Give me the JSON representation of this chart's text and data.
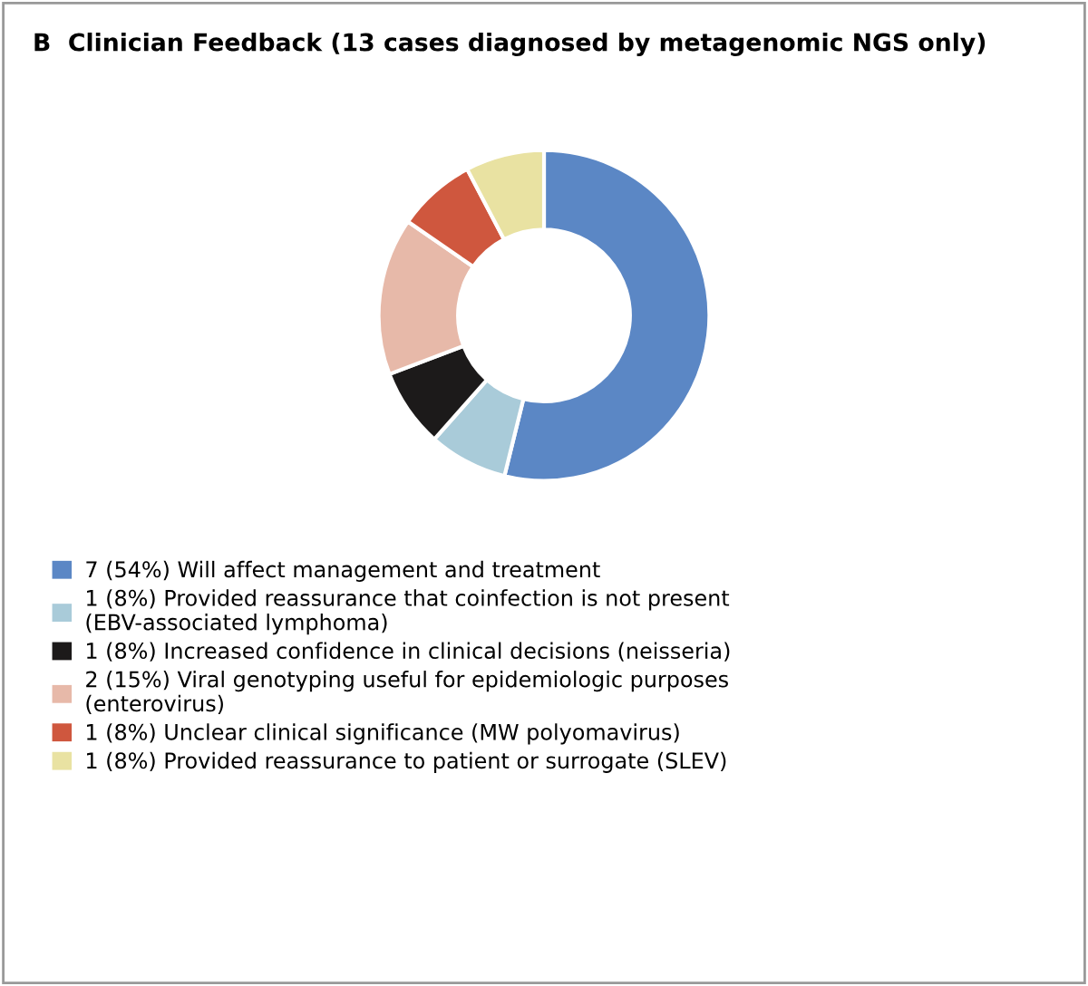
{
  "chart_data": {
    "type": "donut",
    "title": "B  Clinician Feedback (13 cases diagnosed by metagenomic NGS only)",
    "categories": [
      "Will affect management and treatment",
      "Provided reassurance that coinfection is not present\n(EBV-associated lymphoma)",
      "Increased confidence in clinical decisions (neisseria)",
      "Viral genotyping useful for epidemiologic purposes\n(enterovirus)",
      "Unclear clinical significance (MW polyomavirus)",
      "Provided reassurance to patient or surrogate (SLEV)"
    ],
    "values": [
      7,
      1,
      1,
      2,
      1,
      1
    ],
    "value_labels": [
      "7 (54%)",
      "1 (8%)",
      "1 (8%)",
      "2 (15%)",
      "1 (8%)",
      "1 (8%)"
    ],
    "colors": [
      "#5b87c5",
      "#a9cbd9",
      "#1c1a1a",
      "#e7b9a9",
      "#cf573e",
      "#e9e2a2"
    ],
    "legend": "bottom"
  }
}
